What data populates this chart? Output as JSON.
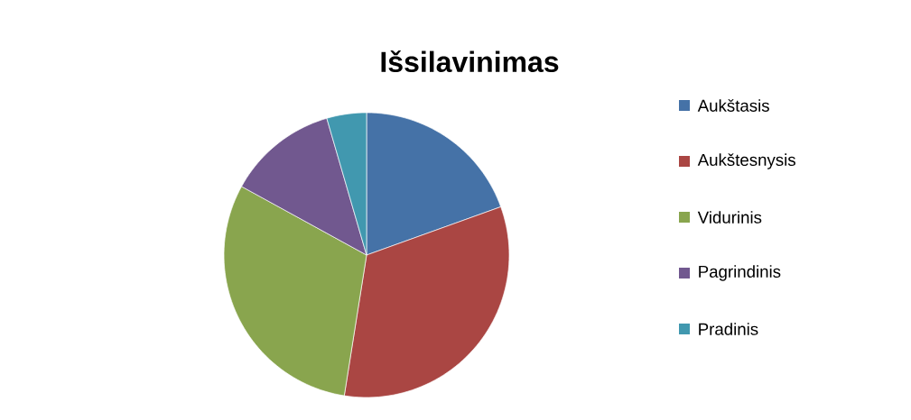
{
  "chart_data": {
    "type": "pie",
    "title": "Išsilavinimas",
    "categories": [
      "Aukštasis",
      "Aukštesnysis",
      "Vidurinis",
      "Pagrindinis",
      "Pradinis"
    ],
    "values": [
      19.5,
      33,
      30.5,
      12.5,
      4.5
    ],
    "colors": [
      "#4572a7",
      "#aa4643",
      "#89a54e",
      "#71588f",
      "#4198af"
    ],
    "legend": "right"
  }
}
